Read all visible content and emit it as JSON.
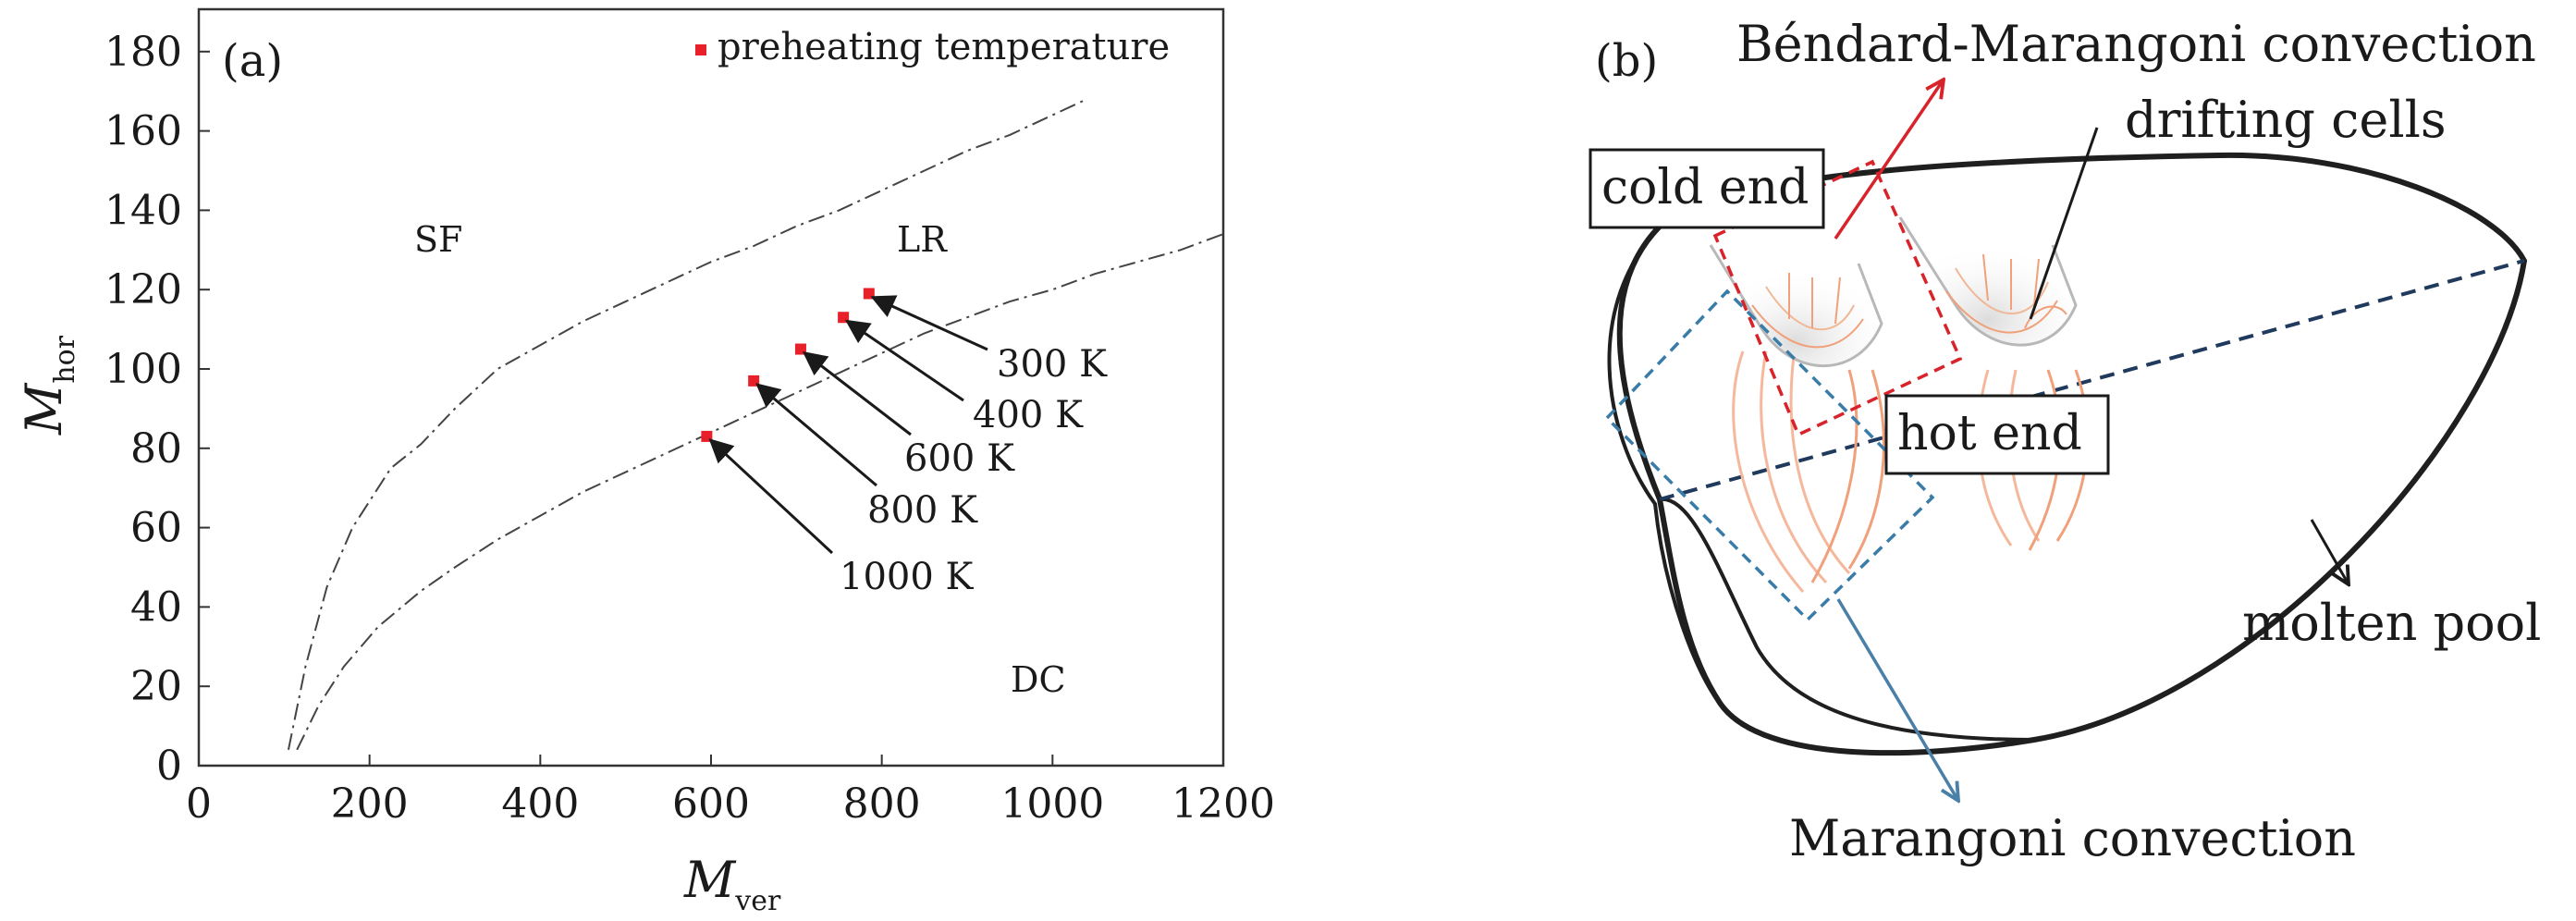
{
  "chart_data": [
    {
      "type": "line",
      "panel_label": "(a)",
      "xlabel_main": "M",
      "xlabel_sub": "ver",
      "ylabel_main": "M",
      "ylabel_sub": "hor",
      "xlim": [
        0,
        1200
      ],
      "ylim": [
        0,
        190
      ],
      "xticks": [
        0,
        200,
        400,
        600,
        800,
        1000,
        1200
      ],
      "yticks": [
        0,
        20,
        40,
        60,
        80,
        100,
        120,
        140,
        160,
        180
      ],
      "grid": false,
      "legend": {
        "position": "top-right",
        "label": "preheating temperature",
        "color": "#e8202a"
      },
      "series": [
        {
          "style": "dashed",
          "x": [
            105,
            125,
            150,
            180,
            225,
            260,
            300,
            350,
            400,
            450,
            500,
            550,
            600,
            650,
            700,
            750,
            800,
            850,
            900,
            950,
            1000,
            1040
          ],
          "y": [
            4,
            25,
            45,
            60,
            75,
            81,
            90,
            100,
            106,
            112,
            117,
            122,
            127,
            131,
            136,
            140,
            145,
            150,
            155,
            159,
            164,
            168
          ]
        },
        {
          "style": "dashed",
          "x": [
            115,
            140,
            170,
            210,
            260,
            300,
            350,
            400,
            450,
            500,
            550,
            600,
            650,
            700,
            750,
            800,
            850,
            900,
            950,
            1000,
            1050,
            1100,
            1150,
            1200
          ],
          "y": [
            4,
            15,
            25,
            35,
            44,
            50,
            57,
            63,
            69,
            74,
            79,
            84,
            89,
            94,
            99,
            104,
            109,
            113,
            117,
            120,
            124,
            127,
            130,
            134
          ]
        }
      ],
      "points": [
        {
          "x": 785,
          "y": 119,
          "label": "300 K"
        },
        {
          "x": 755,
          "y": 113,
          "label": "400 K"
        },
        {
          "x": 705,
          "y": 105,
          "label": "600 K"
        },
        {
          "x": 650,
          "y": 97,
          "label": "800 K"
        },
        {
          "x": 595,
          "y": 83,
          "label": "1000 K"
        }
      ],
      "regions": [
        "SF",
        "LR",
        "DC"
      ]
    },
    {
      "type": "diagram",
      "panel_label": "(b)",
      "labels": {
        "bm_convection": "Béndard-Marangoni convection",
        "drifting_cells": "drifting cells",
        "cold_end": "cold end",
        "hot_end": "hot end",
        "molten_pool": "molten pool",
        "marangoni": "Marangoni convection"
      },
      "colors": {
        "red": "#d9232b",
        "blue": "#4a7fa8",
        "navy": "#1f3a5c",
        "flow": "#f0a07a"
      }
    }
  ]
}
